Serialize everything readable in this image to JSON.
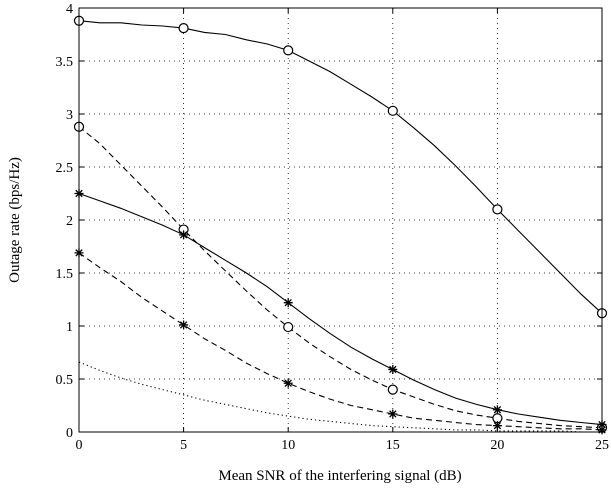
{
  "chart_data": {
    "type": "line",
    "title": "",
    "xlabel": "Mean SNR of the interfering signal (dB)",
    "ylabel": "Outage rate (bps/Hz)",
    "xlim": [
      0,
      25
    ],
    "ylim": [
      0,
      4
    ],
    "xticks": [
      0,
      5,
      10,
      15,
      20,
      25
    ],
    "yticks": [
      0,
      0.5,
      1,
      1.5,
      2,
      2.5,
      3,
      3.5,
      4
    ],
    "xtick_labels": [
      "0",
      "5",
      "10",
      "15",
      "20",
      "25"
    ],
    "ytick_labels": [
      "0",
      "0.5",
      "1",
      "1.5",
      "2",
      "2.5",
      "3",
      "3.5",
      "4"
    ],
    "grid": "dotted",
    "legend": "none",
    "series": [
      {
        "line": "solid",
        "marker": "circle",
        "color": "#000000",
        "x": [
          0,
          1,
          2,
          3,
          4,
          5,
          6,
          7,
          8,
          9,
          10,
          11,
          12,
          13,
          14,
          15,
          16,
          17,
          18,
          19,
          20,
          21,
          22,
          23,
          24,
          25
        ],
        "y": [
          3.88,
          3.86,
          3.86,
          3.84,
          3.83,
          3.81,
          3.77,
          3.75,
          3.7,
          3.66,
          3.6,
          3.5,
          3.4,
          3.28,
          3.16,
          3.03,
          2.87,
          2.7,
          2.51,
          2.31,
          2.1,
          1.9,
          1.7,
          1.5,
          1.3,
          1.12
        ],
        "marker_x": [
          0,
          5,
          10,
          15,
          20,
          25
        ],
        "marker_y": [
          3.88,
          3.81,
          3.6,
          3.03,
          2.1,
          1.12
        ]
      },
      {
        "line": "dashed",
        "marker": "circle",
        "color": "#000000",
        "x": [
          0,
          1,
          2,
          3,
          4,
          5,
          6,
          7,
          8,
          9,
          10,
          11,
          12,
          13,
          14,
          15,
          16,
          17,
          18,
          19,
          20,
          21,
          22,
          23,
          24,
          25
        ],
        "y": [
          2.88,
          2.72,
          2.52,
          2.32,
          2.12,
          1.91,
          1.71,
          1.52,
          1.33,
          1.15,
          0.99,
          0.84,
          0.71,
          0.59,
          0.49,
          0.4,
          0.33,
          0.26,
          0.2,
          0.16,
          0.13,
          0.1,
          0.08,
          0.06,
          0.05,
          0.04
        ],
        "marker_x": [
          0,
          5,
          10,
          15,
          20,
          25
        ],
        "marker_y": [
          2.88,
          1.91,
          0.99,
          0.4,
          0.13,
          0.04
        ]
      },
      {
        "line": "solid",
        "marker": "star",
        "color": "#000000",
        "x": [
          0,
          1,
          2,
          3,
          4,
          5,
          6,
          7,
          8,
          9,
          10,
          11,
          12,
          13,
          14,
          15,
          16,
          17,
          18,
          19,
          20,
          21,
          22,
          23,
          24,
          25
        ],
        "y": [
          2.25,
          2.18,
          2.11,
          2.03,
          1.95,
          1.86,
          1.74,
          1.62,
          1.5,
          1.37,
          1.22,
          1.07,
          0.93,
          0.8,
          0.69,
          0.59,
          0.49,
          0.4,
          0.32,
          0.26,
          0.21,
          0.17,
          0.14,
          0.11,
          0.09,
          0.07
        ],
        "marker_x": [
          0,
          5,
          10,
          15,
          20,
          25
        ],
        "marker_y": [
          2.25,
          1.86,
          1.22,
          0.59,
          0.21,
          0.07
        ]
      },
      {
        "line": "dashed",
        "marker": "star",
        "color": "#000000",
        "x": [
          0,
          1,
          2,
          3,
          4,
          5,
          6,
          7,
          8,
          9,
          10,
          11,
          12,
          13,
          14,
          15,
          16,
          17,
          18,
          19,
          20,
          21,
          22,
          23,
          24,
          25
        ],
        "y": [
          1.69,
          1.55,
          1.42,
          1.27,
          1.14,
          1.01,
          0.88,
          0.77,
          0.65,
          0.55,
          0.46,
          0.38,
          0.31,
          0.25,
          0.21,
          0.17,
          0.13,
          0.11,
          0.09,
          0.07,
          0.06,
          0.05,
          0.04,
          0.03,
          0.03,
          0.02
        ],
        "marker_x": [
          0,
          5,
          10,
          15,
          20,
          25
        ],
        "marker_y": [
          1.69,
          1.01,
          0.46,
          0.17,
          0.06,
          0.02
        ]
      },
      {
        "line": "dotted",
        "marker": "none",
        "color": "#000000",
        "x": [
          0,
          1,
          2,
          3,
          4,
          5,
          6,
          7,
          8,
          9,
          10,
          11,
          12,
          13,
          14,
          15,
          16,
          17,
          18,
          19,
          20,
          21,
          22,
          23,
          24,
          25
        ],
        "y": [
          0.66,
          0.58,
          0.51,
          0.45,
          0.4,
          0.35,
          0.3,
          0.26,
          0.22,
          0.18,
          0.15,
          0.12,
          0.1,
          0.08,
          0.06,
          0.05,
          0.04,
          0.03,
          0.02,
          0.02,
          0.01,
          0.01,
          0.01,
          0.01,
          0.0,
          0.0
        ],
        "marker_x": [],
        "marker_y": []
      }
    ]
  }
}
